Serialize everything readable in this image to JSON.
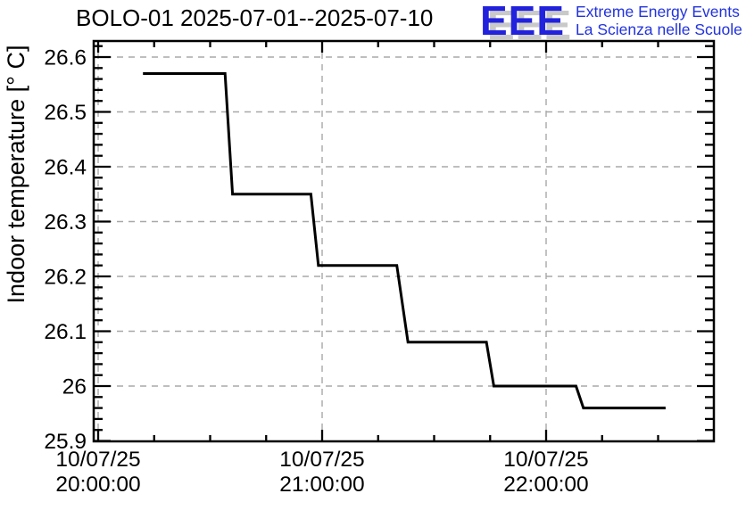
{
  "header": {
    "title": "BOLO-01 2025-07-01--2025-07-10"
  },
  "logo": {
    "acronym": "EEE",
    "line1": "Extreme Energy Events",
    "line2": "La Scienza nelle Scuole",
    "accent_color": "#2222dd",
    "shadow_color": "#c9c9c9"
  },
  "chart_data": {
    "type": "line",
    "title": "BOLO-01 2025-07-01--2025-07-10",
    "xlabel": "",
    "ylabel": "Indoor temperature [° C]",
    "grid": true,
    "legend": "none",
    "line_color": "#000000",
    "grid_color": "#a8a8a8",
    "frame_color": "#000000",
    "ylim": [
      25.9,
      26.63
    ],
    "xlim": [
      "19:58:48",
      "22:44:54"
    ],
    "y_tick_labels": [
      "25.9",
      "26",
      "26.1",
      "26.2",
      "26.3",
      "26.4",
      "26.5",
      "26.6"
    ],
    "y_minor_step": 0.02,
    "x_minor_step_minutes": 15,
    "x_tick_labels": [
      {
        "date": "10/07/25",
        "time": "20:00:00"
      },
      {
        "date": "10/07/25",
        "time": "21:00:00"
      },
      {
        "date": "10/07/25",
        "time": "22:00:00"
      }
    ],
    "series": [
      {
        "name": "Indoor temperature",
        "points": [
          [
            "20:12:00",
            26.57
          ],
          [
            "20:34:00",
            26.57
          ],
          [
            "20:36:00",
            26.35
          ],
          [
            "20:57:00",
            26.35
          ],
          [
            "20:59:00",
            26.22
          ],
          [
            "21:20:00",
            26.22
          ],
          [
            "21:23:00",
            26.08
          ],
          [
            "21:44:00",
            26.08
          ],
          [
            "21:46:00",
            26.0
          ],
          [
            "22:08:00",
            26.0
          ],
          [
            "22:10:00",
            25.96
          ],
          [
            "22:32:00",
            25.96
          ]
        ]
      }
    ]
  }
}
